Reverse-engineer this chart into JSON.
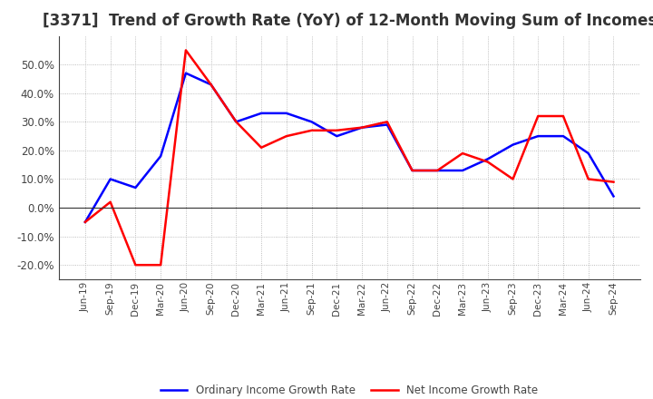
{
  "title": "[3371]  Trend of Growth Rate (YoY) of 12-Month Moving Sum of Incomes",
  "title_fontsize": 12,
  "ylim": [
    -0.25,
    0.6
  ],
  "yticks": [
    -0.2,
    -0.1,
    0.0,
    0.1,
    0.2,
    0.3,
    0.4,
    0.5
  ],
  "x_labels": [
    "Jun-19",
    "Sep-19",
    "Dec-19",
    "Mar-20",
    "Jun-20",
    "Sep-20",
    "Dec-20",
    "Mar-21",
    "Jun-21",
    "Sep-21",
    "Dec-21",
    "Mar-22",
    "Jun-22",
    "Sep-22",
    "Dec-22",
    "Mar-23",
    "Jun-23",
    "Sep-23",
    "Dec-23",
    "Mar-24",
    "Jun-24",
    "Sep-24"
  ],
  "ordinary_income": [
    -0.05,
    0.1,
    0.07,
    0.18,
    0.47,
    0.43,
    0.3,
    0.33,
    0.33,
    0.3,
    0.25,
    0.28,
    0.29,
    0.13,
    0.13,
    0.13,
    0.17,
    0.22,
    0.25,
    0.25,
    0.19,
    0.04
  ],
  "net_income": [
    -0.05,
    0.02,
    -0.2,
    -0.2,
    0.55,
    0.43,
    0.3,
    0.21,
    0.25,
    0.27,
    0.27,
    0.28,
    0.3,
    0.13,
    0.13,
    0.19,
    0.16,
    0.1,
    0.32,
    0.32,
    0.1,
    0.09
  ],
  "ordinary_color": "#0000FF",
  "net_color": "#FF0000",
  "grid_color": "#AAAAAA",
  "background_color": "#FFFFFF",
  "legend_ordinary": "Ordinary Income Growth Rate",
  "legend_net": "Net Income Growth Rate"
}
